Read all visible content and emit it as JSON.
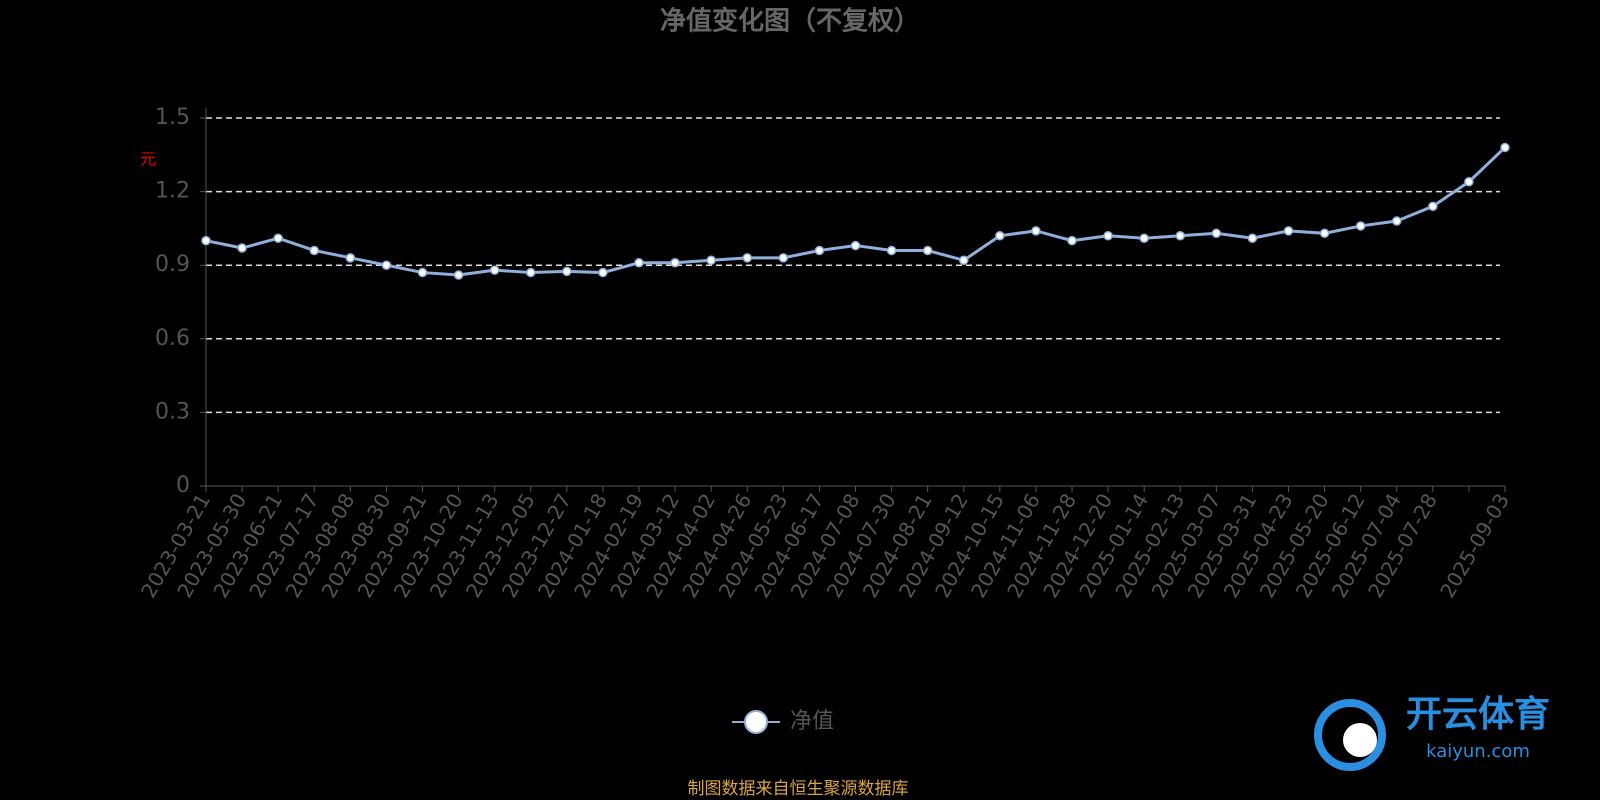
{
  "chart_data": {
    "type": "line",
    "title": "净值变化图（不复权）",
    "y_label": "元",
    "categories": [
      "2023-03-21",
      "2023-05-30",
      "2023-06-21",
      "2023-07-17",
      "2023-08-08",
      "2023-08-30",
      "2023-09-21",
      "2023-10-20",
      "2023-11-13",
      "2023-12-05",
      "2023-12-27",
      "2024-01-18",
      "2024-02-19",
      "2024-03-12",
      "2024-04-02",
      "2024-04-26",
      "2024-05-23",
      "2024-06-17",
      "2024-07-08",
      "2024-07-30",
      "2024-08-21",
      "2024-09-12",
      "2024-10-15",
      "2024-11-06",
      "2024-11-28",
      "2024-12-20",
      "2025-01-14",
      "2025-02-13",
      "2025-03-07",
      "2025-03-31",
      "2025-04-23",
      "2025-05-20",
      "2025-06-12",
      "2025-07-04",
      "2025-07-28",
      null,
      "2025-09-03"
    ],
    "series": [
      {
        "name": "净值",
        "color": "#8fb0dc",
        "values": [
          1.0,
          0.97,
          1.01,
          0.96,
          0.93,
          0.9,
          0.87,
          0.86,
          0.88,
          0.87,
          0.875,
          0.87,
          0.91,
          0.91,
          0.92,
          0.93,
          0.93,
          0.96,
          0.98,
          0.96,
          0.96,
          0.92,
          1.02,
          1.04,
          1.0,
          1.02,
          1.01,
          1.02,
          1.03,
          1.01,
          1.04,
          1.03,
          1.06,
          1.08,
          1.14,
          1.24,
          1.38
        ]
      }
    ],
    "ylim": [
      0,
      1.5
    ],
    "yticks": [
      0,
      0.3,
      0.6,
      0.9,
      1.2,
      1.5
    ],
    "grid": true,
    "source": "制图数据来自恒生聚源数据库"
  },
  "watermark": {
    "brand": "开云体育",
    "site": "kaiyun.com"
  }
}
